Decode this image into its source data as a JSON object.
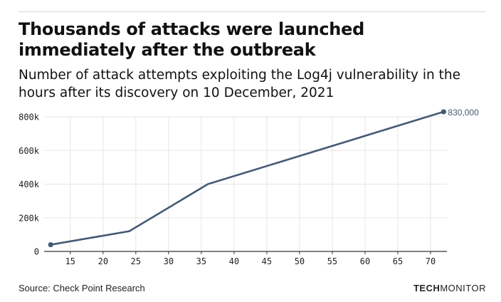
{
  "title": "Thousands of attacks were launched immediately after the outbreak",
  "subtitle": "Number of attack attempts exploiting the Log4j vulnerability in the hours after its discovery on 10 December, 2021",
  "source": "Source: Check Point Research",
  "brand": {
    "part1": "TECH",
    "part2": "MONITOR"
  },
  "chart_data": {
    "type": "line",
    "xlabel": "",
    "ylabel": "",
    "xlim": [
      11,
      72.5
    ],
    "ylim": [
      0,
      800000
    ],
    "x_ticks": [
      15,
      20,
      25,
      30,
      35,
      40,
      45,
      50,
      55,
      60,
      65,
      70
    ],
    "y_ticks": [
      0,
      200000,
      400000,
      600000,
      800000
    ],
    "y_tick_labels": [
      "0",
      "200k",
      "400k",
      "600k",
      "800k"
    ],
    "grid": true,
    "series": [
      {
        "x": [
          12,
          24,
          36,
          72
        ],
        "y": [
          40000,
          120000,
          400000,
          830000
        ]
      }
    ],
    "markers_at": [
      0,
      3
    ],
    "annotations": [
      {
        "x": 72,
        "y": 830000,
        "text": "830,000"
      }
    ],
    "colors": {
      "line": "#455a75",
      "grid": "#e6e6e6",
      "axis": "#333333",
      "annotation": "#455a75"
    }
  }
}
